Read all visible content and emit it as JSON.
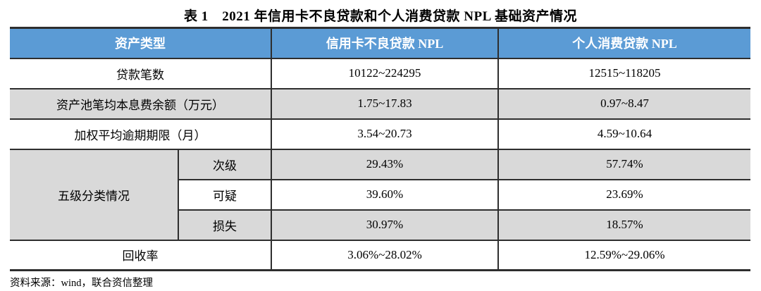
{
  "page": {
    "title": "表 1　2021 年信用卡不良贷款和个人消费贷款 NPL 基础资产情况",
    "source_note": "资料来源：wind，联合资信整理"
  },
  "colors": {
    "header_bg": "#5b9bd5",
    "header_text": "#ffffff",
    "stripe_bg": "#d9d9d9",
    "border": "#2e2e2e"
  },
  "table": {
    "columns": [
      "资产类型",
      "信用卡不良贷款 NPL",
      "个人消费贷款 NPL"
    ],
    "rows": {
      "loan_count": {
        "label": "贷款笔数",
        "credit_card_npl": "10122~224295",
        "consumer_loan_npl": "12515~118205"
      },
      "avg_principal_interest_balance": {
        "label": "资产池笔均本息费余额（万元）",
        "credit_card_npl": "1.75~17.83",
        "consumer_loan_npl": "0.97~8.47"
      },
      "weighted_avg_overdue_term": {
        "label": "加权平均逾期期限（月）",
        "credit_card_npl": "3.54~20.73",
        "consumer_loan_npl": "4.59~10.64"
      },
      "five_level_classification": {
        "label": "五级分类情况",
        "subrows": [
          {
            "label": "次级",
            "credit_card_npl": "29.43%",
            "consumer_loan_npl": "57.74%"
          },
          {
            "label": "可疑",
            "credit_card_npl": "39.60%",
            "consumer_loan_npl": "23.69%"
          },
          {
            "label": "损失",
            "credit_card_npl": "30.97%",
            "consumer_loan_npl": "18.57%"
          }
        ]
      },
      "recovery_rate": {
        "label": "回收率",
        "credit_card_npl": "3.06%~28.02%",
        "consumer_loan_npl": "12.59%~29.06%"
      }
    }
  }
}
